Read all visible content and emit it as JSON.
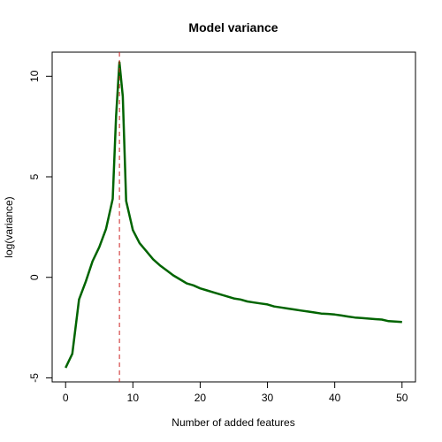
{
  "chart_data": {
    "type": "line",
    "title": "Model variance",
    "xlabel": "Number of added features",
    "ylabel": "log(variance)",
    "xlim": [
      -2,
      52
    ],
    "ylim": [
      -5.2,
      11.2
    ],
    "x_ticks": [
      0,
      10,
      20,
      30,
      40,
      50
    ],
    "x_tick_labels": [
      "0",
      "10",
      "20",
      "30",
      "40",
      "50"
    ],
    "y_ticks": [
      -5,
      0,
      5,
      10
    ],
    "y_tick_labels": [
      "-5",
      "0",
      "5",
      "10"
    ],
    "grid": false,
    "legend": "none",
    "series": [
      {
        "color": "#006400",
        "x": [
          0,
          1,
          2,
          3,
          4,
          5,
          6,
          7,
          7.5,
          8,
          8.5,
          9,
          10,
          11,
          12,
          13,
          14,
          15,
          16,
          17,
          18,
          19,
          20,
          21,
          22,
          23,
          24,
          25,
          26,
          27,
          28,
          29,
          30,
          31,
          32,
          33,
          34,
          35,
          36,
          37,
          38,
          39,
          40,
          41,
          42,
          43,
          44,
          45,
          46,
          47,
          48,
          49,
          50
        ],
        "values": [
          -4.5,
          -3.8,
          -1.1,
          -0.2,
          0.8,
          1.5,
          2.4,
          3.9,
          8.0,
          10.7,
          9.0,
          3.8,
          2.35,
          1.7,
          1.3,
          0.9,
          0.6,
          0.35,
          0.1,
          -0.1,
          -0.3,
          -0.4,
          -0.55,
          -0.65,
          -0.75,
          -0.85,
          -0.95,
          -1.05,
          -1.1,
          -1.2,
          -1.25,
          -1.3,
          -1.35,
          -1.45,
          -1.5,
          -1.55,
          -1.6,
          -1.65,
          -1.7,
          -1.75,
          -1.8,
          -1.82,
          -1.85,
          -1.9,
          -1.95,
          -2.0,
          -2.02,
          -2.05,
          -2.08,
          -2.1,
          -2.18,
          -2.2,
          -2.22
        ]
      }
    ],
    "reference_line": {
      "x": 8,
      "color": "#cc2222",
      "style": "dashed"
    }
  }
}
